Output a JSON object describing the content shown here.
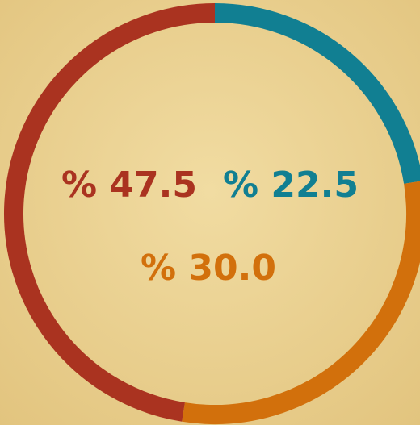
{
  "chart_data": {
    "type": "donut",
    "values": [
      22.5,
      30.0,
      47.5
    ],
    "value_labels": [
      "% 22.5",
      "% 30.0",
      "% 47.5"
    ],
    "colors": [
      "#117f92",
      "#d2700c",
      "#aa3320"
    ]
  }
}
